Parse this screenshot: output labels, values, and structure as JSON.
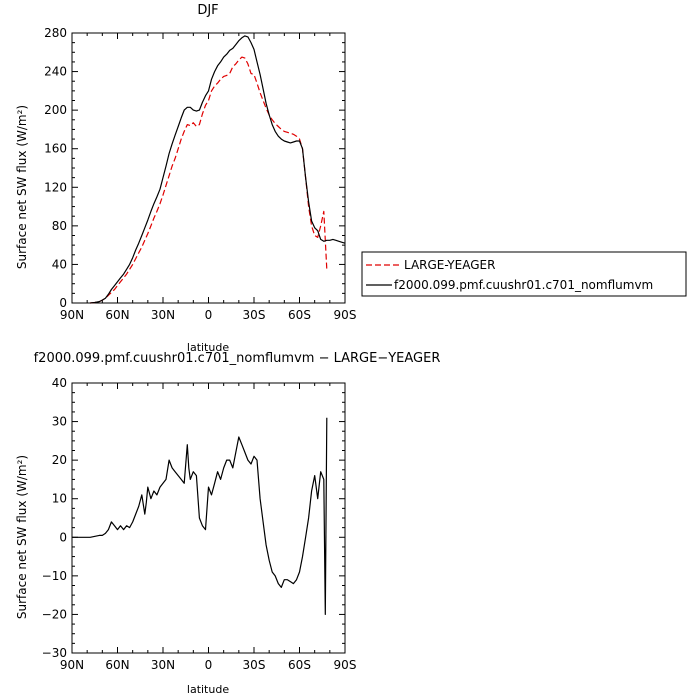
{
  "chart_data": [
    {
      "type": "line",
      "title": "DJF",
      "xlabel": "latitude",
      "ylabel": "Surface net SW flux (W/m²)",
      "xlim": [
        90,
        -90
      ],
      "ylim": [
        0,
        280
      ],
      "xticks": [
        {
          "value": 90,
          "label": "90N"
        },
        {
          "value": 60,
          "label": "60N"
        },
        {
          "value": 30,
          "label": "30N"
        },
        {
          "value": 0,
          "label": "0"
        },
        {
          "value": -30,
          "label": "30S"
        },
        {
          "value": -60,
          "label": "60S"
        },
        {
          "value": -90,
          "label": "90S"
        }
      ],
      "yticks": [
        0,
        40,
        80,
        120,
        160,
        200,
        240,
        280
      ],
      "legend_position": "right",
      "series": [
        {
          "name": "LARGE-YEAGER",
          "color": "#e00000",
          "style": "dashed",
          "x": [
            78,
            75,
            72,
            70,
            68,
            66,
            64,
            62,
            60,
            58,
            56,
            54,
            52,
            50,
            48,
            46,
            44,
            42,
            40,
            38,
            36,
            34,
            32,
            30,
            28,
            26,
            24,
            22,
            20,
            18,
            16,
            14,
            12,
            10,
            8,
            6,
            4,
            2,
            0,
            -2,
            -4,
            -6,
            -8,
            -10,
            -12,
            -14,
            -16,
            -18,
            -20,
            -22,
            -24,
            -26,
            -28,
            -30,
            -32,
            -34,
            -36,
            -38,
            -40,
            -42,
            -44,
            -46,
            -48,
            -50,
            -52,
            -54,
            -56,
            -58,
            -60,
            -62,
            -64,
            -66,
            -68,
            -70,
            -72,
            -74,
            -76,
            -78
          ],
          "values": [
            0,
            0.5,
            1.5,
            3,
            5,
            8,
            11,
            14,
            18,
            22,
            26,
            30,
            35,
            40,
            46,
            52,
            58,
            65,
            72,
            80,
            88,
            95,
            103,
            112,
            122,
            132,
            142,
            150,
            160,
            170,
            178,
            185,
            184,
            187,
            183,
            185,
            196,
            205,
            210,
            220,
            225,
            228,
            232,
            235,
            236,
            238,
            245,
            248,
            252,
            255,
            254,
            248,
            238,
            237,
            228,
            218,
            210,
            202,
            195,
            190,
            186,
            183,
            180,
            178,
            177,
            176,
            175,
            173,
            170,
            160,
            130,
            100,
            80,
            70,
            68,
            80,
            95,
            35
          ]
        },
        {
          "name": "f2000.099.pmf.cuushr01.c701_nomflumvm",
          "color": "#000000",
          "style": "solid",
          "x": [
            78,
            75,
            72,
            70,
            68,
            66,
            64,
            62,
            60,
            58,
            56,
            54,
            52,
            50,
            48,
            46,
            44,
            42,
            40,
            38,
            36,
            34,
            32,
            30,
            28,
            26,
            24,
            22,
            20,
            18,
            16,
            14,
            12,
            10,
            8,
            6,
            4,
            2,
            0,
            -2,
            -4,
            -6,
            -8,
            -10,
            -12,
            -14,
            -16,
            -18,
            -20,
            -22,
            -24,
            -26,
            -28,
            -30,
            -32,
            -34,
            -36,
            -38,
            -40,
            -42,
            -44,
            -46,
            -48,
            -50,
            -52,
            -54,
            -56,
            -58,
            -60,
            -62,
            -64,
            -66,
            -68,
            -70,
            -72,
            -74,
            -76,
            -78,
            -80,
            -82,
            -84,
            -86,
            -88,
            -90
          ],
          "values": [
            0,
            0.5,
            1.5,
            3,
            5,
            9,
            14,
            18,
            22,
            26,
            30,
            35,
            40,
            47,
            55,
            62,
            70,
            78,
            86,
            95,
            103,
            110,
            118,
            130,
            142,
            155,
            165,
            174,
            183,
            192,
            200,
            203,
            203,
            200,
            199,
            200,
            208,
            215,
            220,
            232,
            240,
            246,
            250,
            255,
            258,
            262,
            264,
            268,
            272,
            275,
            277,
            276,
            270,
            263,
            250,
            237,
            222,
            207,
            195,
            185,
            178,
            173,
            170,
            168,
            167,
            166,
            167,
            168,
            168,
            160,
            130,
            105,
            85,
            78,
            75,
            66,
            64,
            65,
            65,
            66,
            65,
            64,
            63,
            62
          ]
        }
      ]
    },
    {
      "type": "line",
      "title": "f2000.099.pmf.cuushr01.c701_nomflumvm − LARGE−YEAGER",
      "xlabel": "latitude",
      "ylabel": "Surface net SW flux (W/m²)",
      "xlim": [
        90,
        -90
      ],
      "ylim": [
        -30,
        40
      ],
      "xticks": [
        {
          "value": 90,
          "label": "90N"
        },
        {
          "value": 60,
          "label": "60N"
        },
        {
          "value": 30,
          "label": "30N"
        },
        {
          "value": 0,
          "label": "0"
        },
        {
          "value": -30,
          "label": "30S"
        },
        {
          "value": -60,
          "label": "60S"
        },
        {
          "value": -90,
          "label": "90S"
        }
      ],
      "yticks": [
        -30,
        -20,
        -10,
        0,
        10,
        20,
        30,
        40
      ],
      "series": [
        {
          "color": "#000000",
          "style": "solid",
          "x": [
            90,
            84,
            78,
            72,
            70,
            68,
            66,
            64,
            62,
            60,
            58,
            56,
            54,
            52,
            50,
            48,
            46,
            44,
            42,
            41,
            40,
            38,
            36,
            34,
            32,
            30,
            28,
            26,
            24,
            22,
            20,
            18,
            16,
            14,
            13,
            12,
            10,
            8,
            6,
            4,
            2,
            0,
            -2,
            -4,
            -6,
            -8,
            -10,
            -12,
            -14,
            -16,
            -18,
            -20,
            -22,
            -24,
            -26,
            -28,
            -30,
            -32,
            -34,
            -36,
            -38,
            -40,
            -42,
            -44,
            -46,
            -48,
            -50,
            -52,
            -54,
            -56,
            -58,
            -60,
            -62,
            -64,
            -66,
            -68,
            -70,
            -72,
            -74,
            -76,
            -77,
            -78
          ],
          "values": [
            0,
            0,
            0,
            0.5,
            0.5,
            1,
            2,
            4,
            3,
            2,
            3,
            2,
            3,
            2.5,
            4,
            6,
            8,
            11,
            6,
            9,
            13,
            10,
            12,
            11,
            13,
            14,
            15,
            20,
            18,
            17,
            16,
            15,
            14,
            24,
            18,
            15,
            17,
            16,
            5,
            3,
            2,
            13,
            11,
            14,
            17,
            15,
            18,
            20,
            20,
            18,
            22,
            26,
            24,
            22,
            20,
            19,
            21,
            20,
            10,
            4,
            -2,
            -6,
            -9,
            -10,
            -12,
            -13,
            -11,
            -11,
            -11.5,
            -12,
            -11,
            -9,
            -5,
            0,
            5,
            12,
            16,
            10,
            17,
            15,
            -20,
            31
          ]
        }
      ]
    }
  ]
}
